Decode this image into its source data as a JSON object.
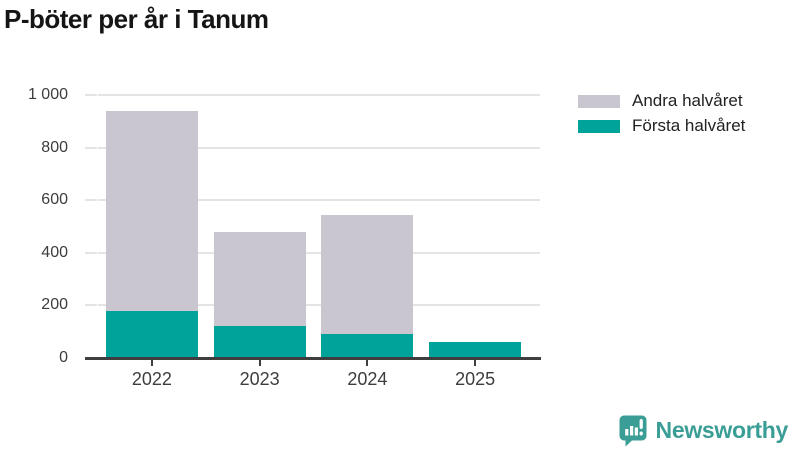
{
  "title": "P-böter per år i Tanum",
  "legend": [
    {
      "label": "Andra halvåret",
      "color": "#c9c6d0"
    },
    {
      "label": "Första halvåret",
      "color": "#00a39a"
    }
  ],
  "chart_data": {
    "type": "bar",
    "stacked": true,
    "title": "P-böter per år i Tanum",
    "categories": [
      "2022",
      "2023",
      "2024",
      "2025"
    ],
    "series": [
      {
        "name": "Första halvåret",
        "color": "#00a39a",
        "values": [
          180,
          120,
          90,
          60
        ]
      },
      {
        "name": "Andra halvåret",
        "color": "#c9c6d0",
        "values": [
          760,
          360,
          455,
          0
        ]
      }
    ],
    "totals": [
      940,
      480,
      545,
      60
    ],
    "xlabel": "",
    "ylabel": "",
    "ylim": [
      0,
      1000
    ],
    "yticks": [
      0,
      200,
      400,
      600,
      800,
      1000
    ],
    "ytick_labels": [
      "0",
      "200",
      "400",
      "600",
      "800",
      "1 000"
    ],
    "grid": true,
    "grid_color": "#e4e4e4",
    "axis_color": "#3e3e3e",
    "tick_label_color": "#3d3d3d",
    "legend_position": "top-right"
  },
  "branding": {
    "logo_text": "Newsworthy",
    "logo_color": "#3b9e96",
    "logo_icon": "newsworthy-chart-bubble-icon"
  }
}
